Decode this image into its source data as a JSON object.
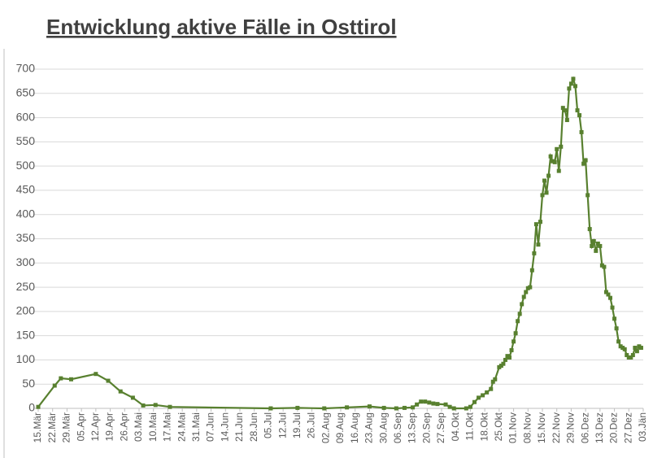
{
  "chart_data": {
    "type": "line",
    "title": "Entwicklung aktive Fälle in Osttirol",
    "color": "#58802f",
    "x": [
      "15.Mär",
      "23.Mär",
      "26.Mär",
      "31.Mär",
      "12.Apr",
      "18.Apr",
      "24.Apr",
      "30.Apr",
      "05.Mai",
      "11.Mai",
      "18.Mai",
      "06.Jul",
      "19.Jul",
      "01.Aug",
      "12.Aug",
      "23.Aug",
      "30.Aug",
      "05.Sep",
      "09.Sep",
      "13.Sep",
      "15.Sep",
      "17.Sep",
      "19.Sep",
      "21.Sep",
      "23.Sep",
      "25.Sep",
      "29.Sep",
      "01.Okt",
      "03.Okt",
      "09.Okt",
      "11.Okt",
      "13.Okt",
      "15.Okt",
      "17.Okt",
      "19.Okt",
      "21.Okt",
      "22.Okt",
      "23.Okt",
      "25.Okt",
      "26.Okt",
      "27.Okt",
      "28.Okt",
      "29.Okt",
      "30.Okt",
      "31.Okt",
      "01.Nov",
      "02.Nov",
      "03.Nov",
      "04.Nov",
      "05.Nov",
      "06.Nov",
      "07.Nov",
      "08.Nov",
      "09.Nov",
      "10.Nov",
      "11.Nov",
      "12.Nov",
      "13.Nov",
      "14.Nov",
      "15.Nov",
      "16.Nov",
      "17.Nov",
      "18.Nov",
      "19.Nov",
      "20.Nov",
      "21.Nov",
      "22.Nov",
      "23.Nov",
      "24.Nov",
      "25.Nov",
      "26.Nov",
      "27.Nov",
      "28.Nov",
      "29.Nov",
      "30.Nov",
      "01.Dez",
      "02.Dez",
      "03.Dez",
      "04.Dez",
      "05.Dez",
      "06.Dez",
      "07.Dez",
      "08.Dez",
      "09.Dez",
      "10.Dez",
      "11.Dez",
      "12.Dez",
      "13.Dez",
      "14.Dez",
      "15.Dez",
      "16.Dez",
      "17.Dez",
      "18.Dez",
      "19.Dez",
      "20.Dez",
      "21.Dez",
      "22.Dez",
      "23.Dez",
      "24.Dez",
      "25.Dez",
      "26.Dez",
      "27.Dez",
      "28.Dez",
      "29.Dez",
      "30.Dez",
      "31.Dez",
      "01.Jän",
      "02.Jän"
    ],
    "values": [
      3,
      47,
      62,
      60,
      71,
      57,
      35,
      22,
      6,
      7,
      3,
      0,
      1,
      0,
      2,
      4,
      1,
      0,
      1,
      2,
      8,
      14,
      14,
      12,
      10,
      9,
      8,
      3,
      0,
      0,
      3,
      13,
      22,
      27,
      33,
      40,
      55,
      60,
      85,
      88,
      92,
      100,
      108,
      105,
      120,
      138,
      155,
      180,
      195,
      215,
      230,
      240,
      248,
      250,
      285,
      320,
      380,
      338,
      385,
      440,
      470,
      445,
      480,
      520,
      510,
      508,
      535,
      490,
      540,
      620,
      615,
      595,
      660,
      670,
      680,
      665,
      615,
      605,
      570,
      505,
      512,
      440,
      370,
      335,
      345,
      325,
      340,
      335,
      295,
      292,
      240,
      235,
      228,
      208,
      185,
      165,
      138,
      128,
      125,
      122,
      110,
      105,
      105,
      110,
      125,
      118,
      128,
      125
    ],
    "xlim": [
      "15.Mär",
      "03.Jän"
    ],
    "xticks": [
      "15.Mär",
      "22.Mär",
      "29.Mär",
      "05.Apr",
      "12.Apr",
      "19.Apr",
      "26.Apr",
      "03.Mai",
      "10.Mai",
      "17.Mai",
      "24.Mai",
      "31.Mai",
      "07.Jun",
      "14.Jun",
      "21.Jun",
      "28.Jun",
      "05.Jul",
      "12.Jul",
      "19.Jul",
      "26.Jul",
      "02.Aug",
      "09.Aug",
      "16.Aug",
      "23.Aug",
      "30.Aug",
      "06.Sep",
      "13.Sep",
      "20.Sep",
      "27.Sep",
      "04.Okt",
      "11.Okt",
      "18.Okt",
      "25.Okt",
      "01.Nov",
      "08.Nov",
      "15.Nov",
      "22.Nov",
      "29.Nov",
      "06.Dez",
      "13.Dez",
      "20.Dez",
      "27.Dez",
      "03.Jän"
    ],
    "ylim": [
      0,
      700
    ],
    "yticks": [
      0,
      50,
      100,
      150,
      200,
      250,
      300,
      350,
      400,
      450,
      500,
      550,
      600,
      650,
      700
    ],
    "grid": true
  }
}
